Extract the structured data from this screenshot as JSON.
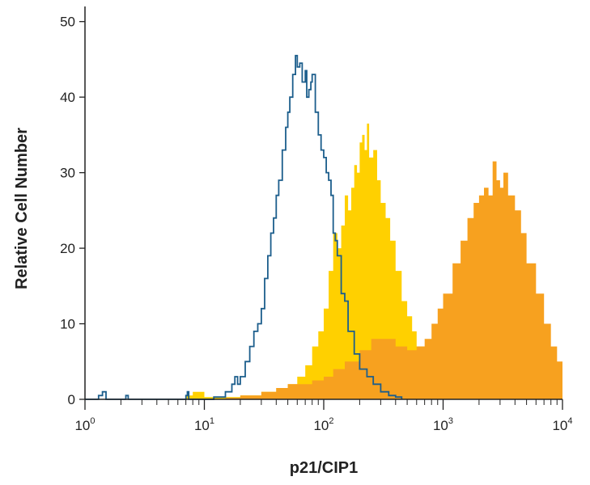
{
  "colors": {
    "isotype_fill": "#FFD000",
    "treated_fill": "#F7A11F",
    "control_outline": "#1C5E8C",
    "axis": "#222222"
  },
  "chart_data": {
    "type": "area",
    "xlabel": "p21/CIP1",
    "ylabel": "Relative Cell Number",
    "xscale": "log",
    "xlim": [
      1,
      10000
    ],
    "ylim": [
      0,
      52
    ],
    "grid": false,
    "x_ticks": [
      {
        "base": "10",
        "exp": "0"
      },
      {
        "base": "10",
        "exp": "1"
      },
      {
        "base": "10",
        "exp": "2"
      },
      {
        "base": "10",
        "exp": "3"
      },
      {
        "base": "10",
        "exp": "4"
      }
    ],
    "y_ticks": [
      "0",
      "10",
      "20",
      "30",
      "40",
      "50"
    ],
    "y_tick_values": [
      0,
      10,
      20,
      30,
      40,
      50
    ],
    "series": [
      {
        "style": "filled",
        "color": "#FFD000",
        "points": [
          [
            1,
            0
          ],
          [
            6,
            0
          ],
          [
            7,
            0.5
          ],
          [
            8,
            1
          ],
          [
            10,
            0.3
          ],
          [
            15,
            0.3
          ],
          [
            20,
            0.5
          ],
          [
            30,
            1
          ],
          [
            40,
            1.5
          ],
          [
            50,
            2
          ],
          [
            60,
            3
          ],
          [
            70,
            4.5
          ],
          [
            80,
            7
          ],
          [
            90,
            9
          ],
          [
            100,
            12
          ],
          [
            110,
            17
          ],
          [
            120,
            22
          ],
          [
            130,
            20
          ],
          [
            140,
            23
          ],
          [
            150,
            27
          ],
          [
            160,
            25
          ],
          [
            170,
            28
          ],
          [
            180,
            31
          ],
          [
            190,
            30
          ],
          [
            200,
            34
          ],
          [
            210,
            35
          ],
          [
            220,
            33
          ],
          [
            230,
            36.5
          ],
          [
            240,
            32
          ],
          [
            260,
            33
          ],
          [
            280,
            29
          ],
          [
            300,
            26
          ],
          [
            330,
            24
          ],
          [
            360,
            21
          ],
          [
            400,
            17
          ],
          [
            450,
            13
          ],
          [
            500,
            11
          ],
          [
            550,
            9
          ],
          [
            600,
            7
          ],
          [
            700,
            4
          ],
          [
            800,
            2
          ],
          [
            1000,
            0.5
          ],
          [
            1200,
            0
          ]
        ]
      },
      {
        "style": "filled",
        "color": "#F7A11F",
        "points": [
          [
            1,
            0
          ],
          [
            10,
            0
          ],
          [
            15,
            0.2
          ],
          [
            20,
            0.5
          ],
          [
            30,
            1
          ],
          [
            40,
            1.5
          ],
          [
            50,
            2
          ],
          [
            60,
            2
          ],
          [
            80,
            2.5
          ],
          [
            100,
            3
          ],
          [
            120,
            4
          ],
          [
            150,
            5
          ],
          [
            200,
            6.5
          ],
          [
            250,
            8
          ],
          [
            300,
            8
          ],
          [
            400,
            7
          ],
          [
            500,
            6.5
          ],
          [
            600,
            7
          ],
          [
            700,
            8
          ],
          [
            800,
            10
          ],
          [
            900,
            12
          ],
          [
            1000,
            14
          ],
          [
            1200,
            18
          ],
          [
            1400,
            21
          ],
          [
            1600,
            24
          ],
          [
            1800,
            26
          ],
          [
            2000,
            27
          ],
          [
            2200,
            28
          ],
          [
            2400,
            27
          ],
          [
            2600,
            31.5
          ],
          [
            2800,
            29
          ],
          [
            3000,
            28
          ],
          [
            3200,
            30
          ],
          [
            3500,
            27
          ],
          [
            4000,
            25
          ],
          [
            4500,
            22
          ],
          [
            5000,
            18
          ],
          [
            6000,
            14
          ],
          [
            7000,
            10
          ],
          [
            8000,
            7
          ],
          [
            9000,
            5
          ],
          [
            10000,
            5
          ]
        ]
      },
      {
        "style": "outline",
        "color": "#1C5E8C",
        "points": [
          [
            1,
            0
          ],
          [
            1.3,
            0.5
          ],
          [
            1.4,
            1
          ],
          [
            1.5,
            0
          ],
          [
            2.2,
            0.5
          ],
          [
            2.3,
            0
          ],
          [
            7,
            0.5
          ],
          [
            7.2,
            1
          ],
          [
            7.4,
            0
          ],
          [
            12,
            0.3
          ],
          [
            15,
            1
          ],
          [
            17,
            2
          ],
          [
            18,
            3
          ],
          [
            19,
            2
          ],
          [
            20,
            3
          ],
          [
            22,
            5
          ],
          [
            24,
            7
          ],
          [
            26,
            9
          ],
          [
            28,
            10
          ],
          [
            30,
            12
          ],
          [
            32,
            16
          ],
          [
            34,
            19
          ],
          [
            36,
            22
          ],
          [
            38,
            24
          ],
          [
            40,
            27
          ],
          [
            42,
            29
          ],
          [
            45,
            33
          ],
          [
            48,
            36
          ],
          [
            50,
            38
          ],
          [
            52,
            40
          ],
          [
            55,
            43
          ],
          [
            58,
            45.5
          ],
          [
            60,
            44
          ],
          [
            63,
            44.5
          ],
          [
            66,
            42
          ],
          [
            70,
            43.5
          ],
          [
            72,
            40
          ],
          [
            75,
            41
          ],
          [
            78,
            42
          ],
          [
            80,
            43
          ],
          [
            85,
            38
          ],
          [
            90,
            35
          ],
          [
            95,
            33
          ],
          [
            100,
            32
          ],
          [
            105,
            30
          ],
          [
            110,
            29
          ],
          [
            115,
            27
          ],
          [
            120,
            22
          ],
          [
            125,
            21
          ],
          [
            130,
            19
          ],
          [
            140,
            14
          ],
          [
            150,
            13
          ],
          [
            160,
            9
          ],
          [
            180,
            6
          ],
          [
            200,
            4
          ],
          [
            230,
            3
          ],
          [
            260,
            2
          ],
          [
            300,
            1
          ],
          [
            350,
            0.5
          ],
          [
            400,
            0.3
          ],
          [
            450,
            0
          ]
        ]
      }
    ]
  }
}
